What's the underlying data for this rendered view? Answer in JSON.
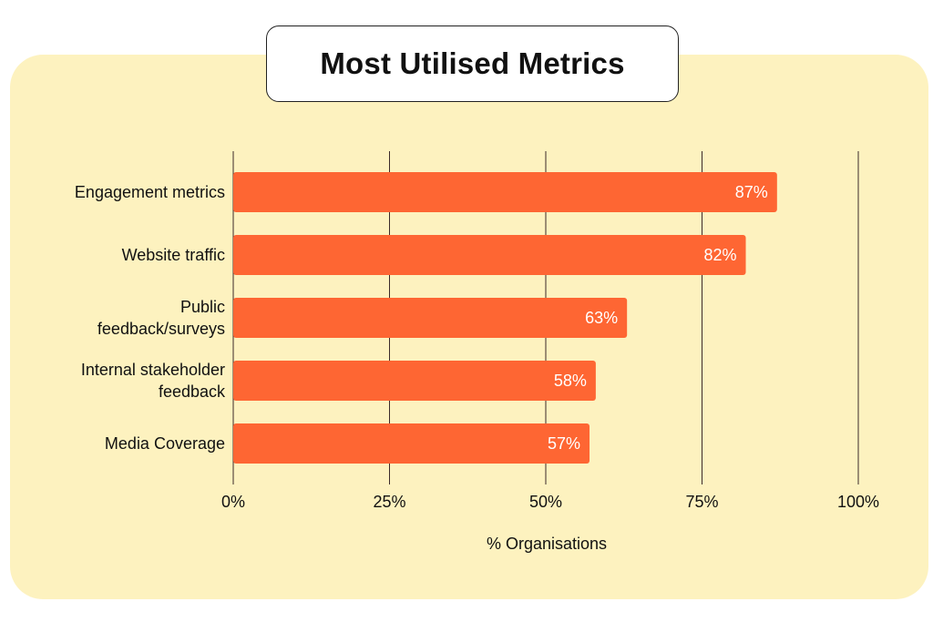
{
  "chart_data": {
    "type": "bar",
    "orientation": "horizontal",
    "title": "Most Utilised Metrics",
    "categories": [
      [
        "Engagement metrics"
      ],
      [
        "Website traffic"
      ],
      [
        "Public",
        "feedback/surveys"
      ],
      [
        "Internal stakeholder",
        "feedback"
      ],
      [
        "Media Coverage"
      ]
    ],
    "values": [
      87,
      82,
      63,
      58,
      57
    ],
    "value_labels": [
      "87%",
      "82%",
      "63%",
      "58%",
      "57%"
    ],
    "xlabel": "% Organisations",
    "xlim": [
      0,
      100
    ],
    "xticks": [
      0,
      25,
      50,
      75,
      100
    ],
    "xtick_labels": [
      "0%",
      "25%",
      "50%",
      "75%",
      "100%"
    ],
    "grid": "vertical",
    "legend": "none"
  },
  "colors": {
    "bar": "#fe6633",
    "panel": "#fdf2bf",
    "gridline": "#3a2a2a",
    "value_text": "#ffffff"
  }
}
